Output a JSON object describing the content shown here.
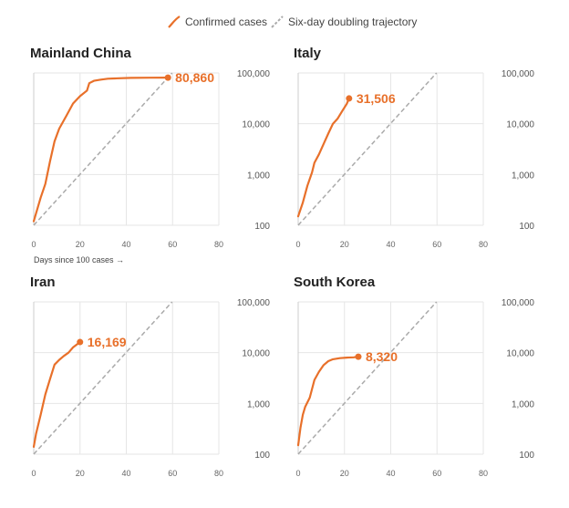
{
  "legend": {
    "confirmed_label": "Confirmed cases",
    "doubling_label": "Six-day doubling trajectory"
  },
  "colors": {
    "confirmed": "#e8702a",
    "doubling": "#aaaaaa",
    "grid": "#e6e6e6"
  },
  "x_note": "Days since 100 cases →",
  "chart_data": [
    {
      "type": "line",
      "title": "Mainland China",
      "xlim": [
        0,
        80
      ],
      "ylim": [
        100,
        100000
      ],
      "yscale": "log",
      "xticks": [
        0,
        20,
        40,
        60,
        80
      ],
      "yticks": [
        100,
        1000,
        10000,
        100000
      ],
      "ytick_labels": [
        "100",
        "1,000",
        "10,000",
        "100,000"
      ],
      "grid": true,
      "end_label": "80,860",
      "series": [
        {
          "x": [
            0,
            3,
            5,
            7,
            9,
            11,
            14,
            17,
            20,
            23,
            24,
            26,
            29,
            32,
            35,
            42,
            50,
            58
          ],
          "y": [
            120,
            350,
            650,
            1800,
            4500,
            8000,
            14000,
            25000,
            35000,
            45000,
            63000,
            70000,
            74000,
            77000,
            78000,
            80000,
            80500,
            80860
          ]
        }
      ],
      "doubling": {
        "x": [
          0,
          60
        ],
        "y": [
          100,
          102400
        ]
      }
    },
    {
      "type": "line",
      "title": "Italy",
      "xlim": [
        0,
        80
      ],
      "ylim": [
        100,
        100000
      ],
      "yscale": "log",
      "xticks": [
        0,
        20,
        40,
        60,
        80
      ],
      "yticks": [
        100,
        1000,
        10000,
        100000
      ],
      "ytick_labels": [
        "100",
        "1,000",
        "10,000",
        "100,000"
      ],
      "grid": true,
      "end_label": "31,506",
      "series": [
        {
          "x": [
            0,
            2,
            4,
            6,
            7,
            9,
            11,
            13,
            15,
            17,
            19,
            21,
            22
          ],
          "y": [
            150,
            280,
            600,
            1100,
            1700,
            2500,
            4000,
            6400,
            10000,
            12500,
            17700,
            24700,
            31506
          ]
        }
      ],
      "doubling": {
        "x": [
          0,
          60
        ],
        "y": [
          100,
          102400
        ]
      }
    },
    {
      "type": "line",
      "title": "Iran",
      "xlim": [
        0,
        80
      ],
      "ylim": [
        100,
        100000
      ],
      "yscale": "log",
      "xticks": [
        0,
        20,
        40,
        60,
        80
      ],
      "yticks": [
        100,
        1000,
        10000,
        100000
      ],
      "ytick_labels": [
        "100",
        "1,000",
        "10,000",
        "100,000"
      ],
      "grid": true,
      "end_label": "16,169",
      "series": [
        {
          "x": [
            0,
            1,
            3,
            5,
            7,
            9,
            11,
            13,
            15,
            17,
            19,
            20
          ],
          "y": [
            140,
            250,
            600,
            1500,
            3000,
            5800,
            7200,
            8600,
            10000,
            12700,
            14900,
            16169
          ]
        }
      ],
      "doubling": {
        "x": [
          0,
          60
        ],
        "y": [
          100,
          102400
        ]
      }
    },
    {
      "type": "line",
      "title": "South Korea",
      "xlim": [
        0,
        80
      ],
      "ylim": [
        100,
        100000
      ],
      "yscale": "log",
      "xticks": [
        0,
        20,
        40,
        60,
        80
      ],
      "yticks": [
        100,
        1000,
        10000,
        100000
      ],
      "ytick_labels": [
        "100",
        "1,000",
        "10,000",
        "100,000"
      ],
      "grid": true,
      "end_label": "8,320",
      "series": [
        {
          "x": [
            0,
            1,
            2,
            3,
            5,
            7,
            9,
            11,
            13,
            15,
            18,
            21,
            24,
            26
          ],
          "y": [
            150,
            330,
            600,
            850,
            1300,
            2900,
            4200,
            5700,
            6800,
            7400,
            7800,
            8000,
            8100,
            8320
          ]
        }
      ],
      "doubling": {
        "x": [
          0,
          60
        ],
        "y": [
          100,
          102400
        ]
      }
    }
  ]
}
